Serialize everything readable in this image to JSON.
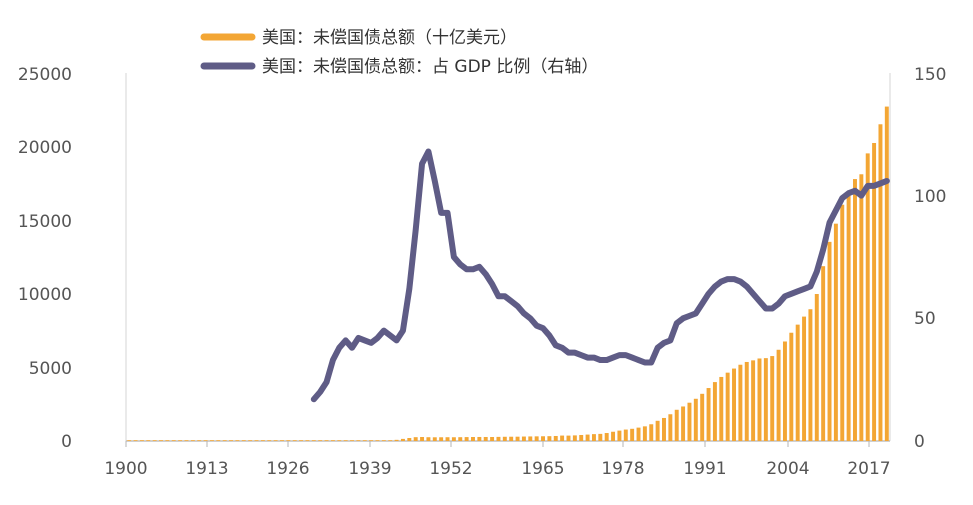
{
  "chart_data": {
    "type": "bar+line",
    "title": "",
    "legend": [
      {
        "label": "美国：未偿国债总额（十亿美元）",
        "color": "#f3a634",
        "kind": "bar"
      },
      {
        "label": "美国：未偿国债总额：占 GDP 比例（右轴）",
        "color": "#5f5c86",
        "kind": "line"
      }
    ],
    "x_ticks": [
      "1900",
      "1913",
      "1926",
      "1939",
      "1952",
      "1965",
      "1978",
      "1991",
      "2004",
      "2017"
    ],
    "x_range": [
      1900,
      2020
    ],
    "y_left": {
      "range": [
        0,
        25000
      ],
      "ticks": [
        "0",
        "5000",
        "10000",
        "15000",
        "20000",
        "25000"
      ]
    },
    "y_right": {
      "range": [
        0,
        150
      ],
      "ticks": [
        "0",
        "50",
        "100",
        "150"
      ]
    },
    "series_bar": {
      "name": "美国：未偿国债总额（十亿美元）",
      "color": "#f3a634",
      "x": [
        1900,
        1901,
        1902,
        1903,
        1904,
        1905,
        1906,
        1907,
        1908,
        1909,
        1910,
        1911,
        1912,
        1913,
        1914,
        1915,
        1916,
        1917,
        1918,
        1919,
        1920,
        1921,
        1922,
        1923,
        1924,
        1925,
        1926,
        1927,
        1928,
        1929,
        1930,
        1931,
        1932,
        1933,
        1934,
        1935,
        1936,
        1937,
        1938,
        1939,
        1940,
        1941,
        1942,
        1943,
        1944,
        1945,
        1946,
        1947,
        1948,
        1949,
        1950,
        1951,
        1952,
        1953,
        1954,
        1955,
        1956,
        1957,
        1958,
        1959,
        1960,
        1961,
        1962,
        1963,
        1964,
        1965,
        1966,
        1967,
        1968,
        1969,
        1970,
        1971,
        1972,
        1973,
        1974,
        1975,
        1976,
        1977,
        1978,
        1979,
        1980,
        1981,
        1982,
        1983,
        1984,
        1985,
        1986,
        1987,
        1988,
        1989,
        1990,
        1991,
        1992,
        1993,
        1994,
        1995,
        1996,
        1997,
        1998,
        1999,
        2000,
        2001,
        2002,
        2003,
        2004,
        2005,
        2006,
        2007,
        2008,
        2009,
        2010,
        2011,
        2012,
        2013,
        2014,
        2015,
        2016,
        2017,
        2018,
        2019
      ],
      "values": [
        2,
        2,
        2,
        2,
        2,
        2,
        2,
        2,
        2,
        3,
        3,
        3,
        3,
        3,
        3,
        3,
        3,
        7,
        14,
        26,
        24,
        24,
        23,
        22,
        21,
        20,
        20,
        18,
        18,
        17,
        16,
        17,
        19,
        23,
        27,
        29,
        34,
        36,
        37,
        40,
        43,
        50,
        79,
        143,
        204,
        260,
        271,
        257,
        252,
        253,
        257,
        255,
        259,
        266,
        271,
        274,
        273,
        272,
        280,
        287,
        291,
        293,
        303,
        310,
        316,
        322,
        328,
        341,
        369,
        366,
        381,
        408,
        436,
        467,
        484,
        542,
        629,
        706,
        777,
        829,
        909,
        995,
        1137,
        1372,
        1565,
        1817,
        2121,
        2346,
        2601,
        2868,
        3206,
        3598,
        4002,
        4351,
        4643,
        4921,
        5181,
        5369,
        5478,
        5606,
        5629,
        5770,
        6198,
        6760,
        7355,
        7905,
        8451,
        8951,
        9986,
        11876,
        13529,
        14764,
        16051,
        16719,
        17794,
        18120,
        19539,
        20245,
        21516,
        22719
      ]
    },
    "series_line": {
      "name": "美国：未偿国债总额：占 GDP 比例（右轴）",
      "color": "#5f5c86",
      "x": [
        1929,
        1930,
        1931,
        1932,
        1933,
        1934,
        1935,
        1936,
        1937,
        1938,
        1939,
        1940,
        1941,
        1942,
        1943,
        1944,
        1945,
        1946,
        1947,
        1948,
        1949,
        1950,
        1951,
        1952,
        1953,
        1954,
        1955,
        1956,
        1957,
        1958,
        1959,
        1960,
        1961,
        1962,
        1963,
        1964,
        1965,
        1966,
        1967,
        1968,
        1969,
        1970,
        1971,
        1972,
        1973,
        1974,
        1975,
        1976,
        1977,
        1978,
        1979,
        1980,
        1981,
        1982,
        1983,
        1984,
        1985,
        1986,
        1987,
        1988,
        1989,
        1990,
        1991,
        1992,
        1993,
        1994,
        1995,
        1996,
        1997,
        1998,
        1999,
        2000,
        2001,
        2002,
        2003,
        2004,
        2005,
        2006,
        2007,
        2008,
        2009,
        2010,
        2011,
        2012,
        2013,
        2014,
        2015,
        2016,
        2017,
        2018,
        2019
      ],
      "values": [
        17,
        20,
        24,
        33,
        38,
        41,
        38,
        42,
        41,
        40,
        42,
        45,
        43,
        41,
        45,
        62,
        86,
        113,
        118,
        106,
        93,
        93,
        75,
        72,
        70,
        70,
        71,
        68,
        64,
        59,
        59,
        57,
        55,
        52,
        50,
        47,
        46,
        43,
        39,
        38,
        36,
        36,
        35,
        34,
        34,
        33,
        33,
        34,
        35,
        35,
        34,
        33,
        32,
        32,
        38,
        40,
        41,
        48,
        50,
        51,
        52,
        56,
        60,
        63,
        65,
        66,
        66,
        65,
        63,
        60,
        57,
        54,
        54,
        56,
        59,
        60,
        61,
        62,
        63,
        69,
        78,
        89,
        94,
        99,
        101,
        102,
        100,
        104,
        104,
        105,
        106
      ]
    }
  }
}
